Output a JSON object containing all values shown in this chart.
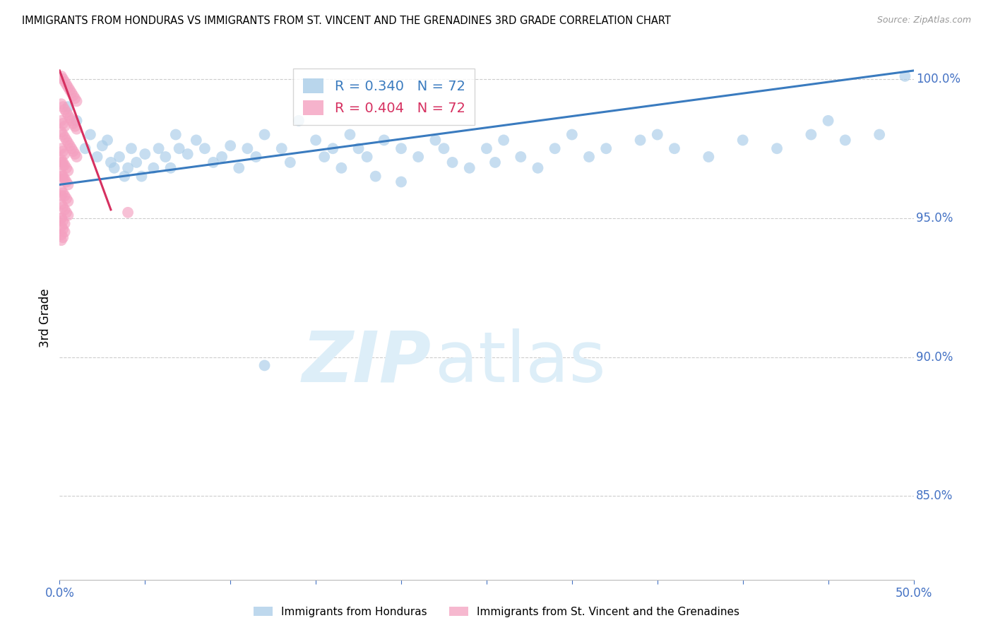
{
  "title": "IMMIGRANTS FROM HONDURAS VS IMMIGRANTS FROM ST. VINCENT AND THE GRENADINES 3RD GRADE CORRELATION CHART",
  "source": "Source: ZipAtlas.com",
  "ylabel": "3rd Grade",
  "xlim": [
    0.0,
    0.5
  ],
  "ylim": [
    0.82,
    1.008
  ],
  "xticks": [
    0.0,
    0.05,
    0.1,
    0.15,
    0.2,
    0.25,
    0.3,
    0.35,
    0.4,
    0.45,
    0.5
  ],
  "xticklabels": [
    "0.0%",
    "",
    "",
    "",
    "",
    "",
    "",
    "",
    "",
    "",
    "50.0%"
  ],
  "yticks": [
    0.85,
    0.9,
    0.95,
    1.0
  ],
  "yticklabels": [
    "85.0%",
    "90.0%",
    "95.0%",
    "100.0%"
  ],
  "legend_blue_label": "R = 0.340   N = 72",
  "legend_pink_label": "R = 0.404   N = 72",
  "blue_color": "#a8cce8",
  "pink_color": "#f4a0c0",
  "line_color": "#3a7bbf",
  "pink_line_color": "#d63060",
  "watermark_zip": "ZIP",
  "watermark_atlas": "atlas",
  "watermark_color": "#ddeef8",
  "blue_scatter_x": [
    0.005,
    0.01,
    0.015,
    0.018,
    0.022,
    0.025,
    0.028,
    0.03,
    0.032,
    0.035,
    0.038,
    0.04,
    0.042,
    0.045,
    0.048,
    0.05,
    0.055,
    0.058,
    0.062,
    0.065,
    0.068,
    0.07,
    0.075,
    0.08,
    0.085,
    0.09,
    0.095,
    0.1,
    0.105,
    0.11,
    0.115,
    0.12,
    0.13,
    0.135,
    0.14,
    0.15,
    0.155,
    0.16,
    0.165,
    0.17,
    0.175,
    0.18,
    0.185,
    0.19,
    0.2,
    0.21,
    0.22,
    0.225,
    0.23,
    0.24,
    0.25,
    0.255,
    0.26,
    0.27,
    0.28,
    0.29,
    0.3,
    0.31,
    0.32,
    0.34,
    0.35,
    0.36,
    0.38,
    0.4,
    0.42,
    0.44,
    0.45,
    0.46,
    0.48,
    0.495,
    0.12,
    0.2
  ],
  "blue_scatter_y": [
    0.99,
    0.985,
    0.975,
    0.98,
    0.972,
    0.976,
    0.978,
    0.97,
    0.968,
    0.972,
    0.965,
    0.968,
    0.975,
    0.97,
    0.965,
    0.973,
    0.968,
    0.975,
    0.972,
    0.968,
    0.98,
    0.975,
    0.973,
    0.978,
    0.975,
    0.97,
    0.972,
    0.976,
    0.968,
    0.975,
    0.972,
    0.98,
    0.975,
    0.97,
    0.985,
    0.978,
    0.972,
    0.975,
    0.968,
    0.98,
    0.975,
    0.972,
    0.965,
    0.978,
    0.975,
    0.972,
    0.978,
    0.975,
    0.97,
    0.968,
    0.975,
    0.97,
    0.978,
    0.972,
    0.968,
    0.975,
    0.98,
    0.972,
    0.975,
    0.978,
    0.98,
    0.975,
    0.972,
    0.978,
    0.975,
    0.98,
    0.985,
    0.978,
    0.98,
    1.001,
    0.897,
    0.963
  ],
  "pink_scatter_x": [
    0.001,
    0.002,
    0.003,
    0.004,
    0.005,
    0.006,
    0.007,
    0.008,
    0.009,
    0.01,
    0.001,
    0.002,
    0.003,
    0.004,
    0.005,
    0.006,
    0.007,
    0.008,
    0.009,
    0.01,
    0.001,
    0.002,
    0.003,
    0.004,
    0.005,
    0.006,
    0.007,
    0.008,
    0.009,
    0.01,
    0.001,
    0.002,
    0.003,
    0.004,
    0.005,
    0.001,
    0.002,
    0.003,
    0.004,
    0.005,
    0.001,
    0.002,
    0.003,
    0.004,
    0.005,
    0.001,
    0.002,
    0.003,
    0.004,
    0.005,
    0.001,
    0.002,
    0.003,
    0.001,
    0.002,
    0.003,
    0.001,
    0.002,
    0.001,
    0.001,
    0.002,
    0.003,
    0.001,
    0.002,
    0.003,
    0.001,
    0.002,
    0.001,
    0.001,
    0.002,
    0.001,
    0.04
  ],
  "pink_scatter_y": [
    1.001,
    1.0,
    0.999,
    0.998,
    0.997,
    0.996,
    0.995,
    0.994,
    0.993,
    0.992,
    0.991,
    0.99,
    0.989,
    0.988,
    0.987,
    0.986,
    0.985,
    0.984,
    0.983,
    0.982,
    0.981,
    0.98,
    0.979,
    0.978,
    0.977,
    0.976,
    0.975,
    0.974,
    0.973,
    0.972,
    0.971,
    0.97,
    0.969,
    0.968,
    0.967,
    0.966,
    0.965,
    0.964,
    0.963,
    0.962,
    0.96,
    0.959,
    0.958,
    0.957,
    0.956,
    0.955,
    0.954,
    0.953,
    0.952,
    0.951,
    0.95,
    0.949,
    0.948,
    0.947,
    0.946,
    0.945,
    0.944,
    0.943,
    0.942,
    0.985,
    0.984,
    0.983,
    0.975,
    0.974,
    0.973,
    0.965,
    0.964,
    0.958,
    0.97,
    0.969,
    0.95,
    0.952
  ],
  "blue_line_x": [
    0.0,
    0.5
  ],
  "blue_line_y": [
    0.962,
    1.003
  ],
  "pink_line_x": [
    0.0,
    0.03
  ],
  "pink_line_y": [
    1.003,
    0.953
  ]
}
